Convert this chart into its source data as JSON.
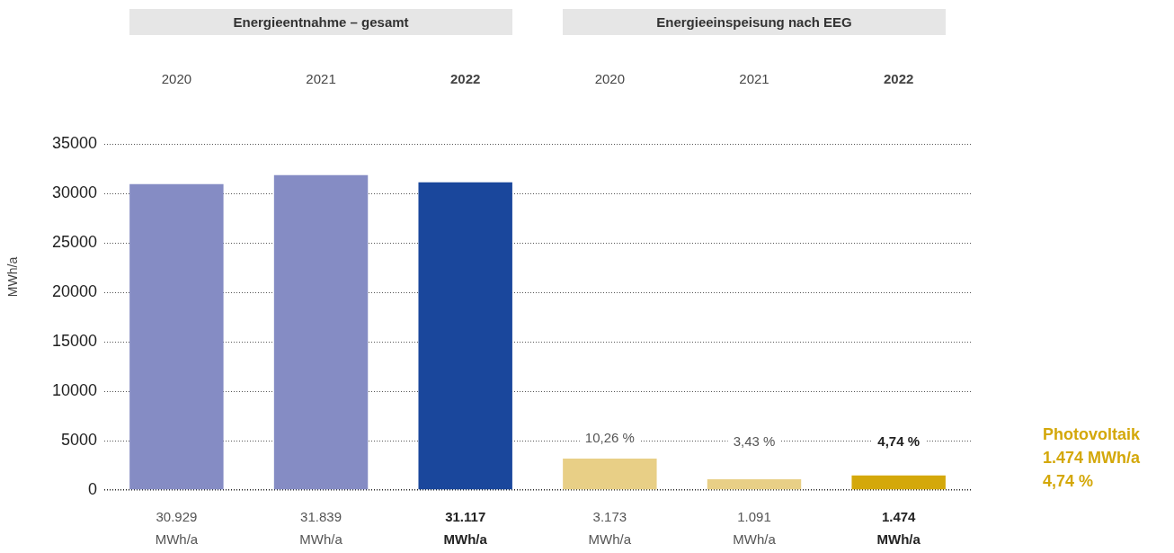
{
  "chart_data": {
    "type": "bar",
    "ylabel": "MWh/a",
    "categories": [
      "2020",
      "2021",
      "2022",
      "2020",
      "2021",
      "2022"
    ],
    "values": [
      30929,
      31839,
      31117,
      3173,
      1091,
      1474
    ],
    "colors": [
      "#858cc4",
      "#858cc4",
      "#1a479c",
      "#e8cf86",
      "#e8cf86",
      "#d4a80a"
    ],
    "value_labels": [
      "30.929 MWh/a",
      "31.839 MWh/a",
      "31.117 MWh/a",
      "3.173 MWh/a",
      "1.091 MWh/a",
      "1.474 MWh/a"
    ],
    "ylim": [
      0,
      35000
    ],
    "yticks": [
      0,
      5000,
      10000,
      15000,
      20000,
      25000,
      30000,
      35000
    ],
    "grid": "y",
    "legend": false,
    "annotations": [
      "Energieentnahme – gesamt",
      "Energieeinspeisung nach EEG",
      "Photovoltaik\n1.474 MWh/a\n4,74 %",
      "10,26 %",
      "3,43 %",
      "4,74 %"
    ]
  }
}
